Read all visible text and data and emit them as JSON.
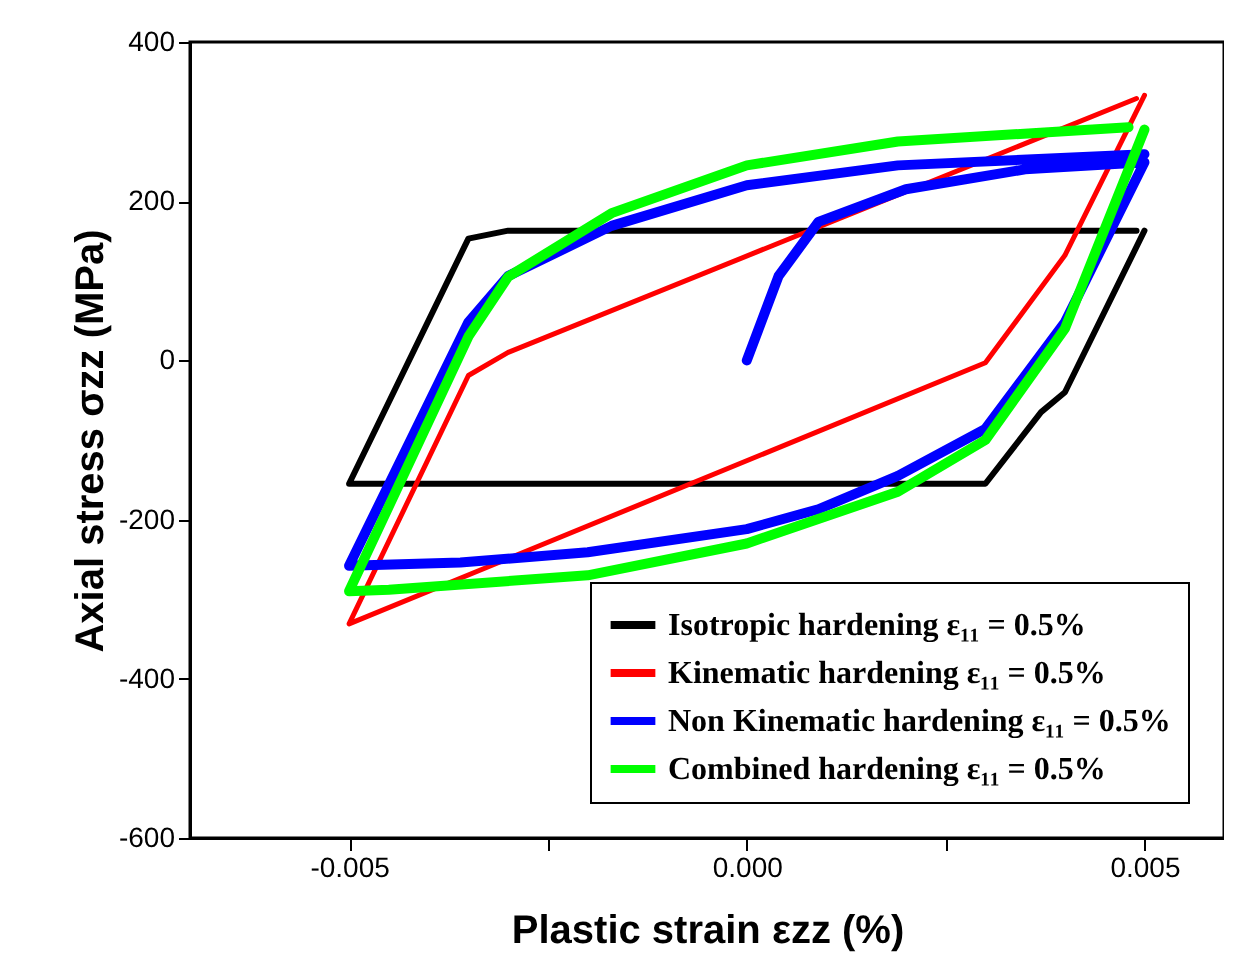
{
  "chart_data": {
    "type": "line",
    "xlabel": "Plastic strain εzz (%)",
    "ylabel": "Axial stress  σzz (MPa)",
    "xlim": [
      -0.007,
      0.006
    ],
    "xticks": [
      {
        "value": -0.005,
        "label": "-0.005"
      },
      {
        "value": -0.0025,
        "label": null
      },
      {
        "value": 0,
        "label": "0.000"
      },
      {
        "value": 0.0025,
        "label": null
      },
      {
        "value": 0.005,
        "label": "0.005"
      }
    ],
    "ylim": [
      -600,
      400
    ],
    "yticks": [
      -600,
      -400,
      -200,
      0,
      200,
      400
    ],
    "grid": false,
    "legend": "bottom right",
    "marker": "none",
    "line_style": "solid",
    "series": [
      {
        "name": "Isotropic hardening ε₁₁ = 0.5%",
        "color": "#000000",
        "x": [
          0.005,
          0.004,
          0.0037,
          0.003,
          -0.005,
          -0.0035,
          -0.003,
          0.0049
        ],
        "values": [
          163,
          -40,
          -65,
          -155,
          -155,
          153,
          163,
          163
        ]
      },
      {
        "name": "Kinematic hardening ε₁₁ = 0.5%",
        "color": "#ff0000",
        "x": [
          0.005,
          0.004,
          0.003,
          -0.005,
          -0.0035,
          -0.003,
          0.0049
        ],
        "values": [
          333,
          132,
          -3,
          -331,
          -19,
          10,
          329
        ]
      },
      {
        "name": "Non Kinematic hardening ε₁₁ = 0.5%",
        "color": "#0000ff",
        "x": [
          0,
          0.0004,
          0.0009,
          0.002,
          0.0035,
          0.005,
          0.004,
          0.003,
          0.0019,
          0.0009,
          0,
          -0.002,
          -0.0036,
          -0.005,
          -0.0035,
          -0.003,
          -0.0017,
          0,
          0.0019,
          0.005
        ],
        "values": [
          0,
          106,
          174,
          215,
          240,
          249,
          48,
          -86,
          -145,
          -187,
          -212,
          -241,
          -254,
          -258,
          48,
          106,
          169,
          220,
          245,
          259
        ]
      },
      {
        "name": "Combined hardening ε₁₁ = 0.5%",
        "color": "#00ff00",
        "x": [
          0.005,
          0.004,
          0.003,
          0.0019,
          0,
          -0.002,
          -0.0045,
          -0.005,
          -0.0035,
          -0.003,
          -0.0017,
          0,
          0.0019,
          0.0048
        ],
        "values": [
          290,
          40,
          -100,
          -165,
          -230,
          -270,
          -288,
          -290,
          30,
          105,
          185,
          245,
          275,
          293
        ]
      }
    ]
  }
}
